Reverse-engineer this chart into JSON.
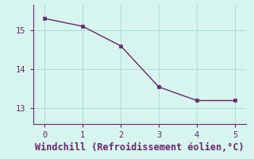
{
  "x": [
    0,
    1,
    2,
    3,
    4,
    5
  ],
  "y": [
    15.3,
    15.1,
    14.6,
    13.55,
    13.2,
    13.2
  ],
  "line_color": "#6b2570",
  "marker_color": "#6b2570",
  "background_color": "#d6f5ee",
  "grid_color": "#aaddd4",
  "axis_color": "#6b2570",
  "xlabel": "Windchill (Refroidissement éolien,°C)",
  "xlabel_fontsize": 8.5,
  "xlabel_color": "#6b2570",
  "tick_color": "#6b2570",
  "tick_fontsize": 7.5,
  "ylim": [
    12.6,
    15.65
  ],
  "xlim": [
    -0.3,
    5.3
  ],
  "yticks": [
    13,
    14,
    15
  ],
  "xticks": [
    0,
    1,
    2,
    3,
    4,
    5
  ]
}
